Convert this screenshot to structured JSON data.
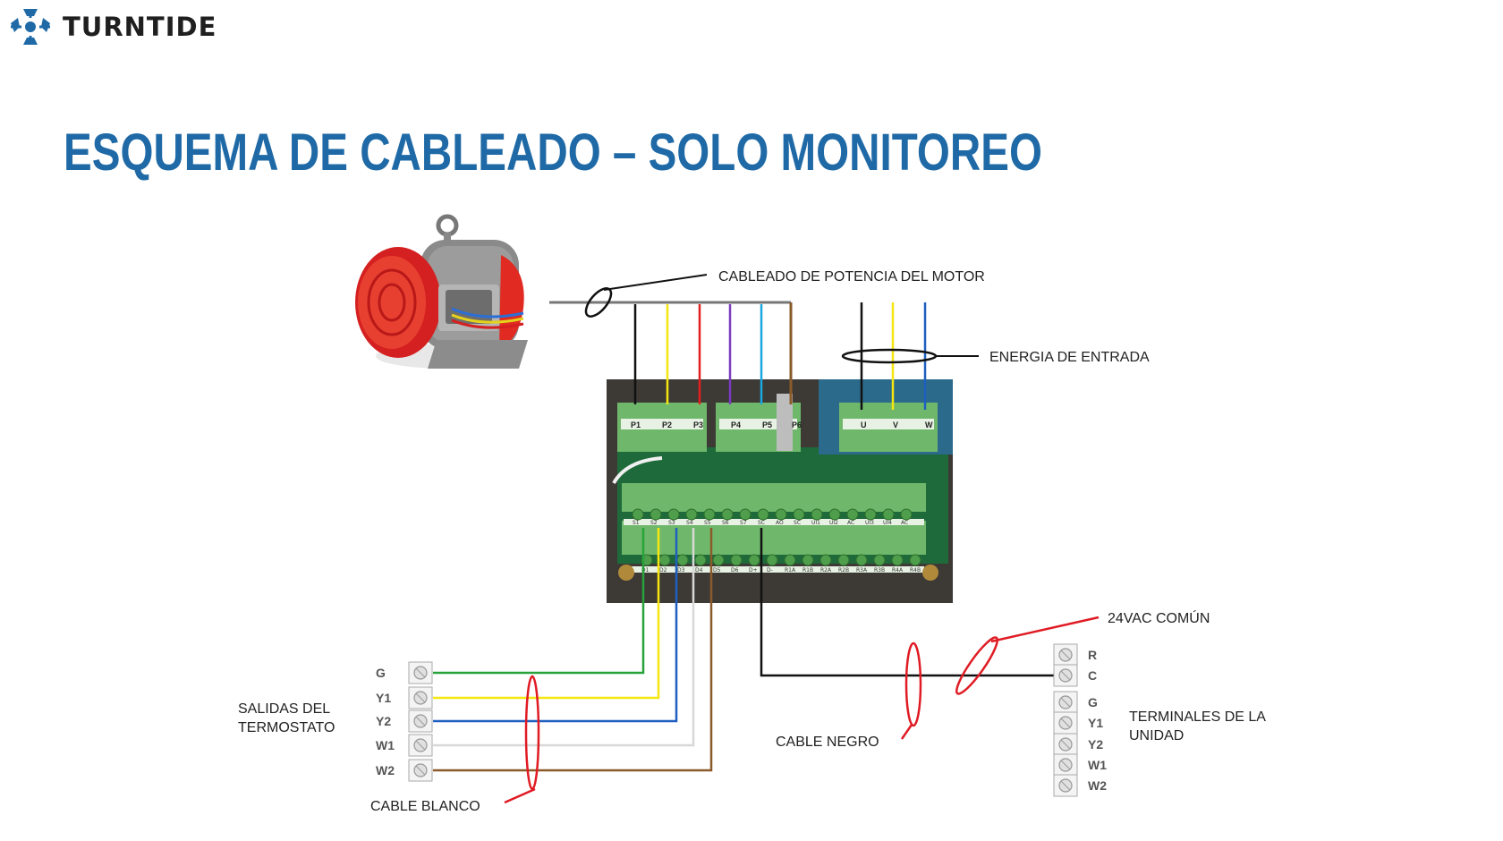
{
  "brand": {
    "name": "TURNTIDE",
    "logo_icon": "turntide-logo-icon",
    "color": "#1f6aa6"
  },
  "title": "ESQUEMA DE CABLEADO – SOLO MONITOREO",
  "colors": {
    "black": "#111111",
    "yellow": "#f5e60f",
    "red": "#e51f1f",
    "purple": "#7a3bbf",
    "cyan": "#1aa7e0",
    "brown": "#8a5a2b",
    "blue": "#1f5fbf",
    "green": "#27a33a",
    "white_wire": "#d8d8d8",
    "annotation_red": "#e01b24",
    "board_green": "#5cb85c"
  },
  "labels": {
    "motor_power": "CABLEADO DE POTENCIA DEL MOTOR",
    "input_power": "ENERGIA DE ENTRADA",
    "common_24vac": "24VAC COMÚN",
    "black_cable": "CABLE NEGRO",
    "white_cable": "CABLE BLANCO",
    "thermostat_outputs": [
      "SALIDAS DEL",
      "TERMOSTATO"
    ],
    "unit_terminals": [
      "TERMINALES DE LA",
      "UNIDAD"
    ]
  },
  "board": {
    "motor_terminals": [
      "P1",
      "P2",
      "P3",
      "P4",
      "P5",
      "P6"
    ],
    "input_terminals": [
      "U",
      "V",
      "W"
    ],
    "upper_row": [
      "S1",
      "S2",
      "S3",
      "S4",
      "S5",
      "S6",
      "S7",
      "SC",
      "AO",
      "SC",
      "UI1",
      "UI2",
      "AC",
      "UI3",
      "UI4",
      "AC"
    ],
    "lower_row": [
      "D1",
      "D2",
      "D3",
      "D4",
      "D5",
      "D6",
      "D+",
      "D-",
      "R1A",
      "R1B",
      "R2A",
      "R2B",
      "R3A",
      "R3B",
      "R4A",
      "R4B"
    ]
  },
  "thermostat": {
    "terminals": [
      "G",
      "Y1",
      "Y2",
      "W1",
      "W2"
    ]
  },
  "unit": {
    "terminals_top": [
      "R",
      "C"
    ],
    "terminals_bottom": [
      "G",
      "Y1",
      "Y2",
      "W1",
      "W2"
    ]
  }
}
